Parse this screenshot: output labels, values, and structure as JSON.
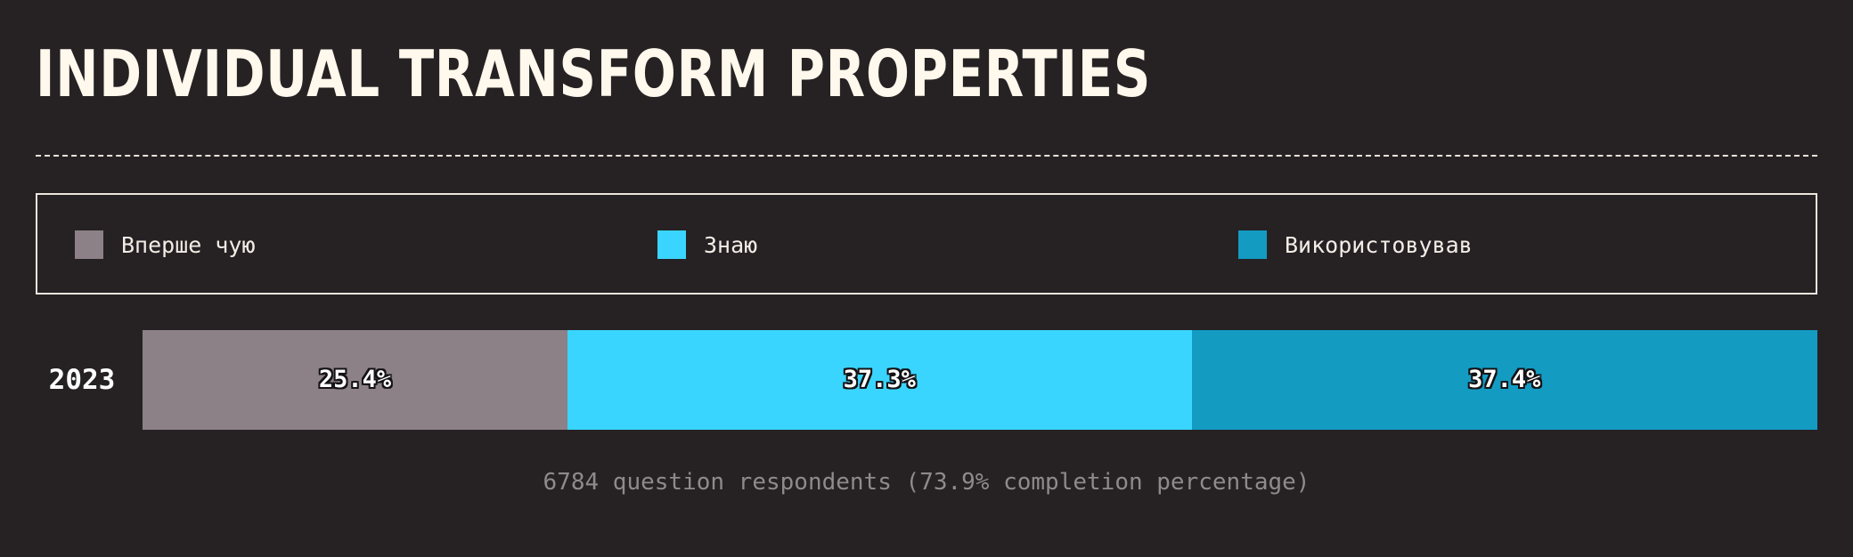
{
  "title": "INDIVIDUAL TRANSFORM PROPERTIES",
  "colors": {
    "background": "#262224",
    "first_time": "#8b8186",
    "know": "#3ad5ff",
    "used": "#139bc2"
  },
  "chart_data": {
    "type": "bar",
    "orientation": "horizontal",
    "stacked": true,
    "normalized": true,
    "title": "INDIVIDUAL TRANSFORM PROPERTIES",
    "categories": [
      "2023"
    ],
    "xlim": [
      0,
      100
    ],
    "legend_position": "top",
    "series": [
      {
        "name": "Вперше чую",
        "values": [
          25.4
        ],
        "labels": [
          "25.4%"
        ],
        "color": "#8b8186"
      },
      {
        "name": "Знаю",
        "values": [
          37.3
        ],
        "labels": [
          "37.3%"
        ],
        "color": "#3ad5ff"
      },
      {
        "name": "Використовував",
        "values": [
          37.4
        ],
        "labels": [
          "37.4%"
        ],
        "color": "#139bc2"
      }
    ],
    "footnote": "6784 question respondents (73.9% completion percentage)"
  }
}
